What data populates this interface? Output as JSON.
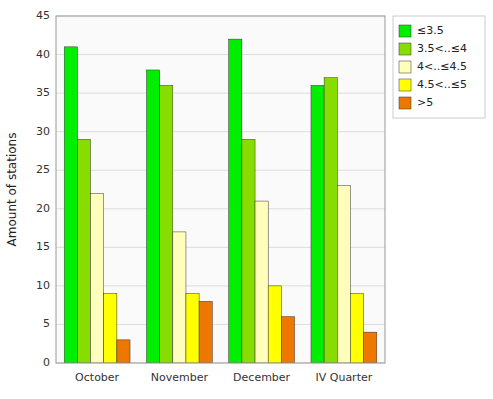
{
  "chart_data": {
    "type": "bar",
    "categories": [
      "October",
      "November",
      "December",
      "IV Quarter"
    ],
    "series": [
      {
        "name": "≤3.5",
        "color": "#00ee00",
        "values": [
          41,
          38,
          42,
          36
        ]
      },
      {
        "name": "3.5<..≤4",
        "color": "#88dd00",
        "values": [
          29,
          36,
          29,
          37
        ]
      },
      {
        "name": "4<..≤4.5",
        "color": "#ffffbb",
        "values": [
          22,
          17,
          21,
          23
        ]
      },
      {
        "name": "4.5<..≤5",
        "color": "#ffff00",
        "values": [
          9,
          9,
          10,
          9
        ]
      },
      {
        "name": ">5",
        "color": "#ee7700",
        "values": [
          3,
          8,
          6,
          4
        ]
      }
    ],
    "ylabel": "Amount of stations",
    "ylim": [
      0,
      45
    ],
    "yticks": [
      0,
      5,
      10,
      15,
      20,
      25,
      30,
      35,
      40,
      45
    ],
    "grid": true,
    "legend": "right"
  }
}
